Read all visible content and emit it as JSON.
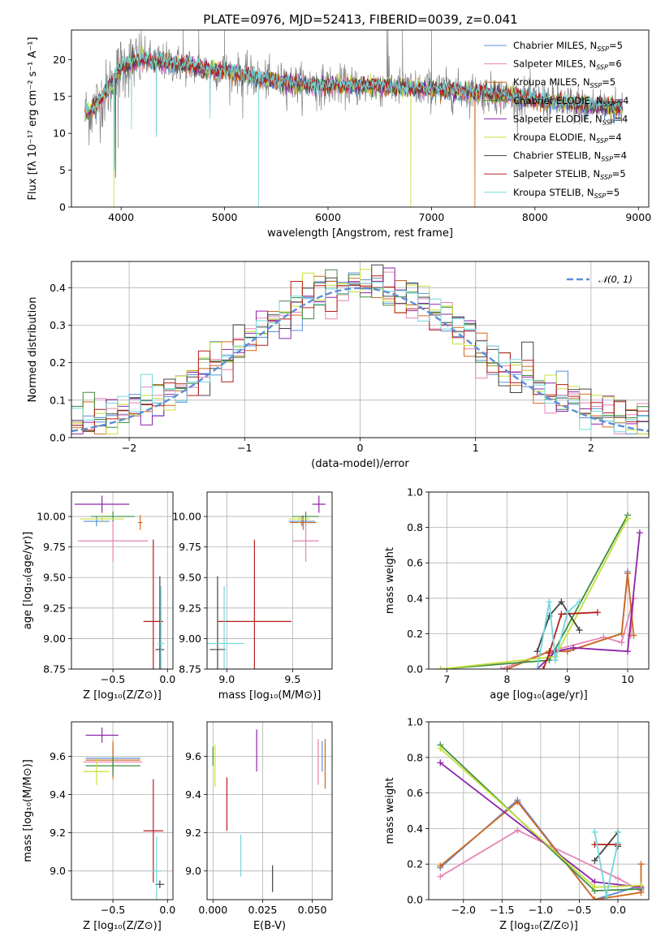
{
  "title": "PLATE=0976, MJD=52413, FIBERID=0039, z=0.041",
  "colors": {
    "Chabrier MILES": "#5b8ed8",
    "Salpeter MILES": "#e684b5",
    "Kroupa MILES": "#d2691e",
    "Chabrier ELODIE": "#3d8c40",
    "Salpeter ELODIE": "#8e24aa",
    "Kroupa ELODIE": "#c5e03a",
    "Chabrier STELIB": "#444444",
    "Salpeter STELIB": "#b71c1c",
    "Kroupa STELIB": "#70d7dd",
    "data": "#808080",
    "grid": "#b0b0b0"
  },
  "chart_data": [
    {
      "type": "line",
      "title": "PLATE=0976, MJD=52413, FIBERID=0039, z=0.041",
      "xlabel": "wavelength [Angstrom, rest frame]",
      "ylabel": "Flux [fλ 10⁻¹⁷ erg cm⁻² s⁻¹ A⁻¹]",
      "xlim": [
        3520,
        9100
      ],
      "ylim": [
        0,
        24
      ],
      "xticks": [
        "4000",
        "5000",
        "6000",
        "7000",
        "8000",
        "9000"
      ],
      "yticks": [
        "0",
        "5",
        "10",
        "15",
        "20"
      ],
      "grid": false,
      "legend_position": "top-right",
      "legend": [
        {
          "name": "Chabrier MILES",
          "label": "Chabrier MILES, N",
          "sub": "SSP",
          "tail": "=5"
        },
        {
          "name": "Salpeter MILES",
          "label": "Salpeter MILES, N",
          "sub": "SSP",
          "tail": "=6"
        },
        {
          "name": "Kroupa MILES",
          "label": "Kroupa MILES, N",
          "sub": "SSP",
          "tail": "=5"
        },
        {
          "name": "Chabrier ELODIE",
          "label": "Chabrier ELODIE, N",
          "sub": "SSP",
          "tail": "=4"
        },
        {
          "name": "Salpeter ELODIE",
          "label": "Salpeter ELODIE, N",
          "sub": "SSP",
          "tail": "=4"
        },
        {
          "name": "Kroupa ELODIE",
          "label": "Kroupa ELODIE, N",
          "sub": "SSP",
          "tail": "=4"
        },
        {
          "name": "Chabrier STELIB",
          "label": "Chabrier STELIB, N",
          "sub": "SSP",
          "tail": "=4"
        },
        {
          "name": "Salpeter STELIB",
          "label": "Salpeter STELIB, N",
          "sub": "SSP",
          "tail": "=5"
        },
        {
          "name": "Kroupa STELIB",
          "label": "Kroupa STELIB, N",
          "sub": "SSP",
          "tail": "=5"
        }
      ],
      "continuum": [
        [
          3650,
          12.5
        ],
        [
          3750,
          13.5
        ],
        [
          3900,
          16.5
        ],
        [
          4000,
          19.0
        ],
        [
          4200,
          20.0
        ],
        [
          4500,
          19.5
        ],
        [
          4800,
          18.8
        ],
        [
          5000,
          18.5
        ],
        [
          5300,
          17.5
        ],
        [
          5600,
          16.8
        ],
        [
          6000,
          16.5
        ],
        [
          6500,
          16.3
        ],
        [
          7000,
          16.0
        ],
        [
          7500,
          15.5
        ],
        [
          8000,
          14.5
        ],
        [
          8500,
          13.8
        ],
        [
          8850,
          13.5
        ]
      ],
      "data_span": [
        3650,
        8850
      ],
      "data_spikes": [
        [
          4600,
          24
        ],
        [
          4750,
          24
        ],
        [
          5000,
          24
        ],
        [
          6570,
          24
        ],
        [
          6580,
          24
        ],
        [
          6720,
          24
        ],
        [
          7000,
          24
        ],
        [
          3935,
          6
        ],
        [
          3970,
          8
        ],
        [
          4100,
          12
        ],
        [
          4340,
          10
        ],
        [
          4860,
          13
        ],
        [
          5175,
          12
        ],
        [
          5890,
          13
        ],
        [
          8200,
          13.5
        ],
        [
          8540,
          12.5
        ],
        [
          8660,
          12.5
        ]
      ],
      "model_dips": [
        {
          "series": "Kroupa ELODIE",
          "x": 3930,
          "y": 0
        },
        {
          "series": "Kroupa STELIB",
          "x": 3935,
          "y": 5
        },
        {
          "series": "Chabrier STELIB",
          "x": 3945,
          "y": 4
        },
        {
          "series": "Kroupa STELIB",
          "x": 4100,
          "y": 10.5
        },
        {
          "series": "Chabrier MILES",
          "x": 4340,
          "y": 10
        },
        {
          "series": "Kroupa STELIB",
          "x": 4340,
          "y": 9.5
        },
        {
          "series": "Kroupa STELIB",
          "x": 4860,
          "y": 12
        },
        {
          "series": "Kroupa STELIB",
          "x": 5330,
          "y": 0
        },
        {
          "series": "Kroupa ELODIE",
          "x": 6800,
          "y": 0
        },
        {
          "series": "Kroupa MILES",
          "x": 7420,
          "y": 0
        }
      ]
    },
    {
      "type": "line",
      "xlabel": "(data-model)/error",
      "ylabel": "Normed distribution",
      "xlim": [
        -2.5,
        2.5
      ],
      "ylim": [
        0,
        0.47
      ],
      "xticks": [
        "−2",
        "−1",
        "0",
        "1",
        "2"
      ],
      "yticks": [
        "0.0",
        "0.1",
        "0.2",
        "0.3",
        "0.4"
      ],
      "grid": true,
      "legend_position": "top-right",
      "gaussian_label": "𝒩(0, 1)",
      "histogram_bin_width": 0.1,
      "histogram_note": "step histograms for each of the 9 model fits, approximately following N(0,1)"
    },
    {
      "type": "scatter",
      "xlabel": "Z [log₁₀(Z/Z⊙)]",
      "ylabel": "age  [log₁₀(age/yr)]",
      "xlim": [
        -0.88,
        0.05
      ],
      "ylim": [
        8.75,
        10.2
      ],
      "xticks": [
        "−0.5",
        "0.0"
      ],
      "yticks": [
        "8.75",
        "9.00",
        "9.25",
        "9.50",
        "9.75",
        "10.00"
      ],
      "grid": true,
      "points": [
        {
          "series": "Chabrier MILES",
          "x": -0.65,
          "y": 9.96,
          "xerr": 0.12,
          "yerr": 0.04
        },
        {
          "series": "Salpeter MILES",
          "x": -0.5,
          "y": 9.8,
          "xerr": 0.32,
          "yerr": 0.17
        },
        {
          "series": "Kroupa MILES",
          "x": -0.25,
          "y": 9.95,
          "xerr": 0.02,
          "yerr": 0.06
        },
        {
          "series": "Chabrier ELODIE",
          "x": -0.5,
          "y": 10.0,
          "xerr": 0.2,
          "yerr": 0.04
        },
        {
          "series": "Salpeter ELODIE",
          "x": -0.6,
          "y": 10.1,
          "xerr": 0.25,
          "yerr": 0.07
        },
        {
          "series": "Kroupa ELODIE",
          "x": -0.6,
          "y": 9.98,
          "xerr": 0.2,
          "yerr": 0.03
        },
        {
          "series": "Chabrier STELIB",
          "x": -0.07,
          "y": 8.91,
          "xerr": 0.04,
          "yerr": 0.6
        },
        {
          "series": "Salpeter STELIB",
          "x": -0.13,
          "y": 9.14,
          "xerr": 0.09,
          "yerr": 0.67
        },
        {
          "series": "Kroupa STELIB",
          "x": -0.06,
          "y": 8.96,
          "xerr": 0.03,
          "yerr": 0.47
        }
      ]
    },
    {
      "type": "scatter",
      "xlabel": "mass [log₁₀(M/M⊙)]",
      "ylabel": "",
      "xlim": [
        8.85,
        9.8
      ],
      "ylim": [
        8.75,
        10.2
      ],
      "xticks": [
        "9.0",
        "9.5"
      ],
      "yticks": [
        "8.75",
        "9.00",
        "9.25",
        "9.50",
        "9.75",
        "10.00"
      ],
      "grid": true,
      "points": [
        {
          "series": "Chabrier MILES",
          "x": 9.57,
          "y": 9.96,
          "xerr": 0.1,
          "yerr": 0.04
        },
        {
          "series": "Salpeter MILES",
          "x": 9.6,
          "y": 9.8,
          "xerr": 0.1,
          "yerr": 0.17
        },
        {
          "series": "Kroupa MILES",
          "x": 9.58,
          "y": 9.95,
          "xerr": 0.1,
          "yerr": 0.06
        },
        {
          "series": "Chabrier ELODIE",
          "x": 9.6,
          "y": 10.0,
          "xerr": 0.1,
          "yerr": 0.04
        },
        {
          "series": "Salpeter ELODIE",
          "x": 9.7,
          "y": 10.1,
          "xerr": 0.05,
          "yerr": 0.07
        },
        {
          "series": "Kroupa ELODIE",
          "x": 9.55,
          "y": 9.98,
          "xerr": 0.08,
          "yerr": 0.03
        },
        {
          "series": "Chabrier STELIB",
          "x": 8.93,
          "y": 8.91,
          "xerr": 0.06,
          "yerr": 0.6
        },
        {
          "series": "Salpeter STELIB",
          "x": 9.21,
          "y": 9.14,
          "xerr": 0.28,
          "yerr": 0.67
        },
        {
          "series": "Kroupa STELIB",
          "x": 8.98,
          "y": 8.96,
          "xerr": 0.15,
          "yerr": 0.47
        }
      ]
    },
    {
      "type": "line",
      "xlabel": "age  [log₁₀(age/yr)]",
      "ylabel": "mass weight",
      "xlim": [
        6.7,
        10.35
      ],
      "ylim": [
        0,
        1.0
      ],
      "xticks": [
        "7",
        "8",
        "9",
        "10"
      ],
      "yticks": [
        "0.0",
        "0.2",
        "0.4",
        "0.6",
        "0.8",
        "1.0"
      ],
      "grid": true,
      "series": [
        {
          "name": "Chabrier MILES",
          "x": [
            8.0,
            8.7,
            9.0,
            9.9,
            10.0
          ],
          "y": [
            0.0,
            0.1,
            0.1,
            0.2,
            0.55
          ]
        },
        {
          "name": "Salpeter MILES",
          "x": [
            7.9,
            8.7,
            9.6,
            9.9,
            10.1,
            10.05
          ],
          "y": [
            0.0,
            0.1,
            0.18,
            0.15,
            0.4,
            0.19
          ]
        },
        {
          "name": "Kroupa MILES",
          "x": [
            8.0,
            8.7,
            9.0,
            9.9,
            10.0,
            10.1
          ],
          "y": [
            0.0,
            0.1,
            0.1,
            0.2,
            0.54,
            0.19
          ]
        },
        {
          "name": "Chabrier ELODIE",
          "x": [
            6.9,
            8.7,
            10.0
          ],
          "y": [
            0.0,
            0.05,
            0.87
          ]
        },
        {
          "name": "Salpeter ELODIE",
          "x": [
            8.5,
            8.8,
            9.1,
            10.0,
            10.2
          ],
          "y": [
            0.0,
            0.1,
            0.12,
            0.1,
            0.77
          ]
        },
        {
          "name": "Kroupa ELODIE",
          "x": [
            6.9,
            8.8,
            10.0
          ],
          "y": [
            0.0,
            0.07,
            0.85
          ]
        },
        {
          "name": "Chabrier STELIB",
          "x": [
            8.5,
            8.7,
            8.9,
            9.2
          ],
          "y": [
            0.1,
            0.3,
            0.38,
            0.22
          ]
        },
        {
          "name": "Salpeter STELIB",
          "x": [
            8.6,
            8.7,
            8.9,
            9.5
          ],
          "y": [
            0.0,
            0.09,
            0.31,
            0.32
          ]
        },
        {
          "name": "Kroupa STELIB",
          "x": [
            8.5,
            8.7,
            8.8,
            9.0,
            9.2
          ],
          "y": [
            0.0,
            0.38,
            0.05,
            0.32,
            0.38
          ]
        }
      ]
    },
    {
      "type": "scatter",
      "xlabel": "Z [log₁₀(Z/Z⊙)]",
      "ylabel": "mass [log₁₀(M/M⊙)]",
      "xlim": [
        -0.88,
        0.05
      ],
      "ylim": [
        8.85,
        9.78
      ],
      "xticks": [
        "−0.5",
        "0.0"
      ],
      "yticks": [
        "9.0",
        "9.2",
        "9.4",
        "9.6"
      ],
      "grid": true,
      "points": [
        {
          "series": "Chabrier MILES",
          "x": -0.5,
          "y": 9.59,
          "xerr": 0.25,
          "yerr": 0.07
        },
        {
          "series": "Salpeter MILES",
          "x": -0.5,
          "y": 9.57,
          "xerr": 0.27,
          "yerr": 0.08
        },
        {
          "series": "Kroupa MILES",
          "x": -0.5,
          "y": 9.58,
          "xerr": 0.25,
          "yerr": 0.1
        },
        {
          "series": "Chabrier ELODIE",
          "x": -0.5,
          "y": 9.55,
          "xerr": 0.25,
          "yerr": 0.05
        },
        {
          "series": "Salpeter ELODIE",
          "x": -0.6,
          "y": 9.71,
          "xerr": 0.15,
          "yerr": 0.04
        },
        {
          "series": "Kroupa ELODIE",
          "x": -0.65,
          "y": 9.52,
          "xerr": 0.12,
          "yerr": 0.07
        },
        {
          "series": "Chabrier STELIB",
          "x": -0.07,
          "y": 8.93,
          "xerr": 0.04,
          "yerr": 0.02
        },
        {
          "series": "Salpeter STELIB",
          "x": -0.13,
          "y": 9.21,
          "xerr": 0.09,
          "yerr": 0.27
        },
        {
          "series": "Kroupa STELIB",
          "x": -0.1,
          "y": 9.0,
          "xerr": 0.04,
          "yerr": 0.18
        }
      ]
    },
    {
      "type": "scatter",
      "xlabel": "E(B-V)",
      "ylabel": "",
      "xlim": [
        -0.003,
        0.06
      ],
      "ylim": [
        8.85,
        9.78
      ],
      "xticks": [
        "0.000",
        "0.025",
        "0.050"
      ],
      "yticks": [
        "9.0",
        "9.2",
        "9.4",
        "9.6"
      ],
      "grid": true,
      "points": [
        {
          "series": "Chabrier MILES",
          "x": 0.055,
          "y": 9.6,
          "xerr": 0,
          "yerr": 0.08
        },
        {
          "series": "Salpeter MILES",
          "x": 0.053,
          "y": 9.57,
          "xerr": 0,
          "yerr": 0.12
        },
        {
          "series": "Kroupa MILES",
          "x": 0.0565,
          "y": 9.56,
          "xerr": 0,
          "yerr": 0.13
        },
        {
          "series": "Chabrier ELODIE",
          "x": 0.0,
          "y": 9.6,
          "xerr": 0,
          "yerr": 0.05
        },
        {
          "series": "Salpeter ELODIE",
          "x": 0.022,
          "y": 9.63,
          "xerr": 0,
          "yerr": 0.11
        },
        {
          "series": "Kroupa ELODIE",
          "x": 0.001,
          "y": 9.55,
          "xerr": 0,
          "yerr": 0.11
        },
        {
          "series": "Chabrier STELIB",
          "x": 0.03,
          "y": 8.96,
          "xerr": 0,
          "yerr": 0.07
        },
        {
          "series": "Salpeter STELIB",
          "x": 0.007,
          "y": 9.35,
          "xerr": 0,
          "yerr": 0.14
        },
        {
          "series": "Kroupa STELIB",
          "x": 0.014,
          "y": 9.08,
          "xerr": 0,
          "yerr": 0.11
        }
      ]
    },
    {
      "type": "line",
      "xlabel": "Z [log₁₀(Z/Z⊙)]",
      "ylabel": "mass weight",
      "xlim": [
        -2.45,
        0.4
      ],
      "ylim": [
        0,
        1.0
      ],
      "xticks": [
        "−2.0",
        "−1.5",
        "−1.0",
        "−0.5",
        "0.0"
      ],
      "yticks": [
        "0.0",
        "0.2",
        "0.4",
        "0.6",
        "0.8",
        "1.0"
      ],
      "grid": true,
      "series": [
        {
          "name": "Chabrier MILES",
          "x": [
            -2.3,
            -1.3,
            -0.3,
            0.3
          ],
          "y": [
            0.18,
            0.56,
            0.0,
            0.08
          ]
        },
        {
          "name": "Salpeter MILES",
          "x": [
            -2.3,
            -1.3,
            0.0,
            0.3
          ],
          "y": [
            0.13,
            0.39,
            0.12,
            0.05
          ]
        },
        {
          "name": "Kroupa MILES",
          "x": [
            -2.3,
            -1.3,
            -0.3,
            0.3,
            0.3
          ],
          "y": [
            0.19,
            0.55,
            0.0,
            0.04,
            0.2
          ]
        },
        {
          "name": "Chabrier ELODIE",
          "x": [
            -2.3,
            -0.3,
            0.3
          ],
          "y": [
            0.87,
            0.05,
            0.06
          ]
        },
        {
          "name": "Salpeter ELODIE",
          "x": [
            -2.3,
            -0.3,
            0.3
          ],
          "y": [
            0.77,
            0.1,
            0.07
          ]
        },
        {
          "name": "Kroupa ELODIE",
          "x": [
            -2.3,
            -0.3,
            0.3
          ],
          "y": [
            0.85,
            0.07,
            0.08
          ]
        },
        {
          "name": "Chabrier STELIB",
          "x": [
            -0.3,
            0.0,
            0.0
          ],
          "y": [
            0.22,
            0.38,
            0.3
          ]
        },
        {
          "name": "Salpeter STELIB",
          "x": [
            -0.3,
            0.0
          ],
          "y": [
            0.31,
            0.31
          ]
        },
        {
          "name": "Kroupa STELIB",
          "x": [
            -0.3,
            -0.15,
            0.0,
            0.0
          ],
          "y": [
            0.38,
            0.02,
            0.32,
            0.38
          ]
        }
      ]
    }
  ]
}
